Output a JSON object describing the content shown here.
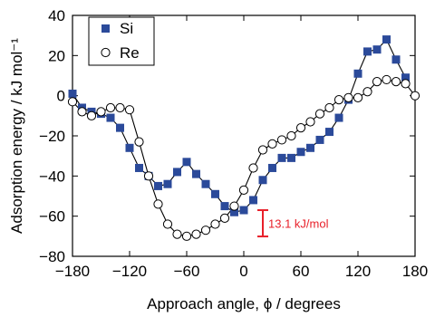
{
  "chart_data": {
    "type": "line",
    "title": "",
    "xlabel": "Approach angle, ϕ / degrees",
    "ylabel": "Adsorption energy / kJ mol⁻¹",
    "xlim": [
      -180,
      180
    ],
    "ylim": [
      -80,
      40
    ],
    "xticks": [
      -180,
      -120,
      -60,
      0,
      60,
      120,
      180
    ],
    "xtick_labels": [
      "−180",
      "−120",
      "−60",
      "0",
      "60",
      "120",
      "180"
    ],
    "yticks": [
      -80,
      -60,
      -40,
      -20,
      0,
      20,
      40
    ],
    "ytick_labels": [
      "−80",
      "−60",
      "−40",
      "−20",
      "0",
      "20",
      "40"
    ],
    "grid": false,
    "legend_position": "top-left",
    "series": [
      {
        "name": "Si",
        "marker": "square",
        "color": "#2b4a9a",
        "x": [
          -180,
          -170,
          -160,
          -150,
          -140,
          -130,
          -120,
          -110,
          -100,
          -90,
          -80,
          -70,
          -60,
          -50,
          -40,
          -30,
          -20,
          -10,
          0,
          10,
          20,
          30,
          40,
          50,
          60,
          70,
          80,
          90,
          100,
          110,
          120,
          130,
          140,
          150,
          160,
          170
        ],
        "y": [
          1,
          -6,
          -8,
          -9,
          -11,
          -16,
          -26,
          -36,
          -40,
          -45,
          -44,
          -38,
          -33,
          -39,
          -44,
          -49,
          -55,
          -58,
          -57,
          -52,
          -42,
          -36,
          -31,
          -31,
          -28,
          -26,
          -22,
          -18,
          -11,
          -2,
          11,
          22,
          23,
          28,
          18,
          9
        ]
      },
      {
        "name": "Re",
        "marker": "circle",
        "color": "#ffffff",
        "x": [
          -180,
          -170,
          -160,
          -150,
          -140,
          -130,
          -120,
          -110,
          -100,
          -90,
          -80,
          -70,
          -60,
          -50,
          -40,
          -30,
          -20,
          -10,
          0,
          10,
          20,
          30,
          40,
          50,
          60,
          70,
          80,
          90,
          100,
          110,
          120,
          130,
          140,
          150,
          160,
          170,
          180
        ],
        "y": [
          -3,
          -8,
          -10,
          -8,
          -6,
          -6,
          -7,
          -23,
          -40,
          -54,
          -64,
          -69,
          -70,
          -69,
          -67,
          -64,
          -61,
          -55,
          -47,
          -36,
          -27,
          -24,
          -22,
          -20,
          -16,
          -13,
          -9,
          -6,
          -2,
          -1,
          -1,
          2,
          7,
          8,
          7,
          6,
          0
        ]
      }
    ],
    "annotation": {
      "text": "13.1 kJ/mol",
      "x": 20,
      "y_top": -57,
      "y_bottom": -70.1,
      "color": "#e8202a"
    }
  }
}
